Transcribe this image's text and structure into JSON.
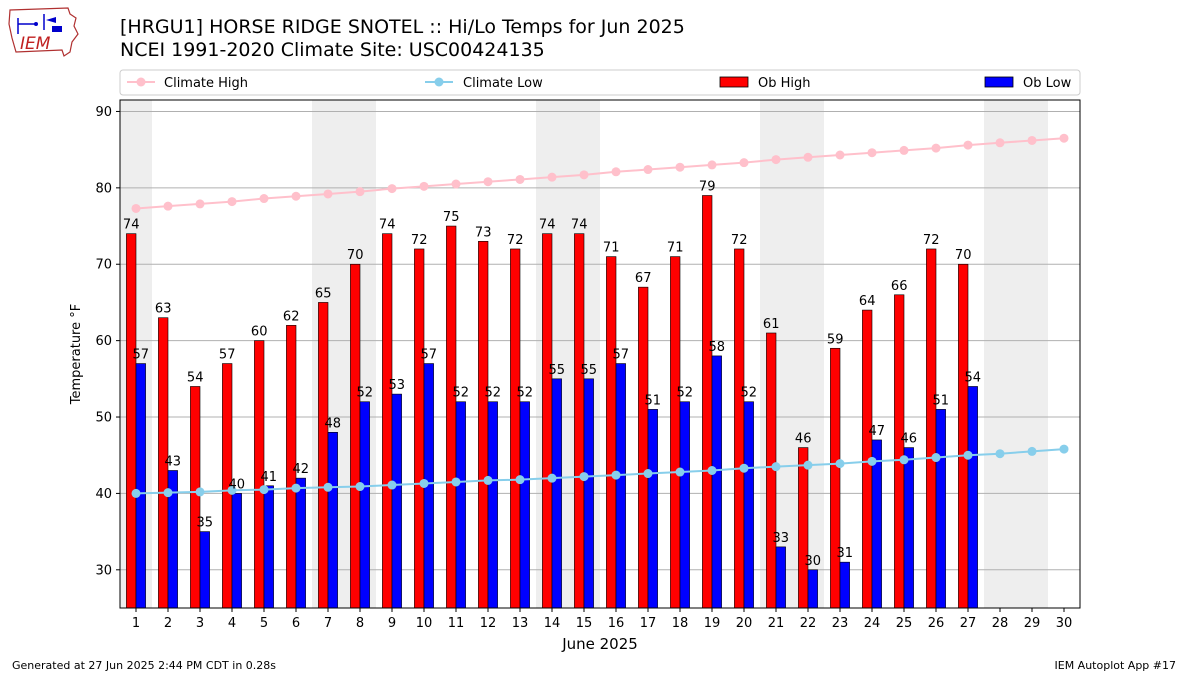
{
  "header": {
    "title_line1": "[HRGU1] HORSE RIDGE SNOTEL :: Hi/Lo Temps for Jun 2025",
    "title_line2": "NCEI 1991-2020 Climate Site: USC00424135"
  },
  "logo": {
    "text": "IEM"
  },
  "footer": {
    "generated": "Generated at 27 Jun 2025 2:44 PM CDT in 0.28s",
    "app": "IEM Autoplot App #17"
  },
  "colors": {
    "ob_high": "#ff0000",
    "ob_low": "#0000ff",
    "climate_high": "#ffc0cb",
    "climate_low": "#87ceeb",
    "weekend_shade": "#eeeeee"
  },
  "chart_data": {
    "type": "bar",
    "xlabel": "June 2025",
    "ylabel": "Temperature °F",
    "ylim": [
      25,
      91.5
    ],
    "yticks": [
      30,
      40,
      50,
      60,
      70,
      80,
      90
    ],
    "categories": [
      "1",
      "2",
      "3",
      "4",
      "5",
      "6",
      "7",
      "8",
      "9",
      "10",
      "11",
      "12",
      "13",
      "14",
      "15",
      "16",
      "17",
      "18",
      "19",
      "20",
      "21",
      "22",
      "23",
      "24",
      "25",
      "26",
      "27",
      "28",
      "29",
      "30"
    ],
    "shaded_days": [
      1,
      7,
      8,
      14,
      15,
      21,
      22,
      28,
      29
    ],
    "grid": "horizontal",
    "legend": "top",
    "legend_entries": [
      "Climate High",
      "Climate Low",
      "Ob High",
      "Ob Low"
    ],
    "series": [
      {
        "name": "Ob High",
        "kind": "bar",
        "values": [
          74,
          63,
          54,
          57,
          60,
          62,
          65,
          70,
          74,
          72,
          75,
          73,
          72,
          74,
          74,
          71,
          67,
          71,
          79,
          72,
          61,
          46,
          59,
          64,
          66,
          72,
          70,
          null,
          null,
          null
        ]
      },
      {
        "name": "Ob Low",
        "kind": "bar",
        "values": [
          57,
          43,
          35,
          40,
          41,
          42,
          48,
          52,
          53,
          57,
          52,
          52,
          52,
          55,
          55,
          57,
          51,
          52,
          58,
          52,
          33,
          30,
          31,
          47,
          46,
          51,
          54,
          null,
          null,
          null
        ]
      },
      {
        "name": "Climate High",
        "kind": "line",
        "values": [
          77.3,
          77.6,
          77.9,
          78.2,
          78.6,
          78.9,
          79.2,
          79.5,
          79.9,
          80.2,
          80.5,
          80.8,
          81.1,
          81.4,
          81.7,
          82.1,
          82.4,
          82.7,
          83.0,
          83.3,
          83.7,
          84.0,
          84.3,
          84.6,
          84.9,
          85.2,
          85.6,
          85.9,
          86.2,
          86.5
        ]
      },
      {
        "name": "Climate Low",
        "kind": "line",
        "values": [
          40.0,
          40.1,
          40.2,
          40.4,
          40.5,
          40.7,
          40.8,
          40.9,
          41.1,
          41.3,
          41.5,
          41.7,
          41.8,
          42.0,
          42.2,
          42.4,
          42.6,
          42.8,
          43.0,
          43.3,
          43.5,
          43.7,
          43.9,
          44.2,
          44.4,
          44.7,
          45.0,
          45.2,
          45.5,
          45.8
        ]
      }
    ]
  }
}
